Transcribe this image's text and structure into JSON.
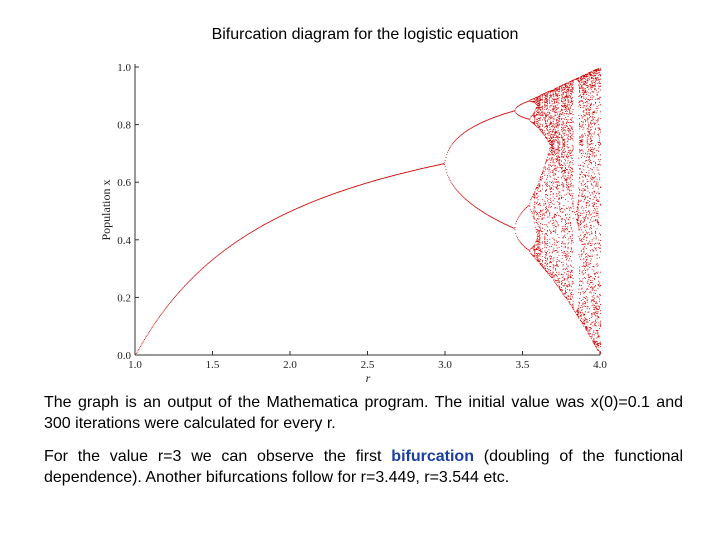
{
  "title": "Bifurcation diagram for the logistic equation",
  "chart_data": {
    "type": "scatter",
    "xlabel": "r",
    "ylabel": "Population  x",
    "xlim": [
      1.0,
      4.0
    ],
    "ylim": [
      0.0,
      1.0
    ],
    "xticks": [
      "1.0",
      "1.5",
      "2.0",
      "2.5",
      "3.0",
      "3.5",
      "4.0"
    ],
    "yticks": [
      "0.0",
      "0.2",
      "0.4",
      "0.6",
      "0.8",
      "1.0"
    ],
    "grid": false,
    "point_color": "#cc0000",
    "x0": 0.1,
    "iterations": 300,
    "series_description": "x(n+1) = r x(n) (1 - x(n)) attractor values for r from 1.0 to 4.0"
  },
  "paragraph1": "The graph is an output of the Mathematica program. The initial value was x(0)=0.1 and 300 iterations were calculated for every r.",
  "paragraph2": {
    "before": "For the value r=3 we can observe the first ",
    "highlight": "bifurcation",
    "after": " (doubling of the functional dependence). Another bifurcations follow for r=3.449, r=3.544 etc."
  }
}
